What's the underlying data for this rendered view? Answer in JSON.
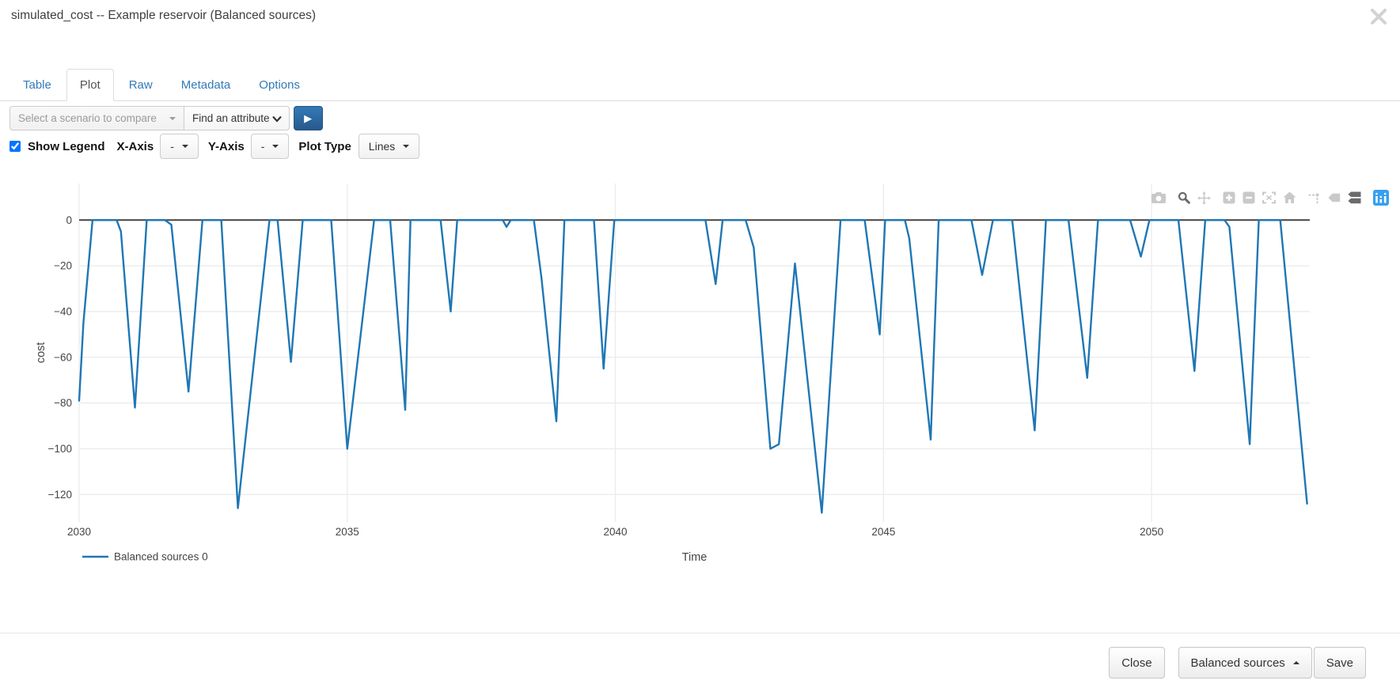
{
  "window": {
    "title": "simulated_cost -- Example reservoir (Balanced sources)"
  },
  "tabs": [
    {
      "label": "Table",
      "active": false
    },
    {
      "label": "Plot",
      "active": true
    },
    {
      "label": "Raw",
      "active": false
    },
    {
      "label": "Metadata",
      "active": false
    },
    {
      "label": "Options",
      "active": false
    }
  ],
  "toolbar": {
    "scenario_select_placeholder": "Select a scenario to compare",
    "attribute_select_label": "Find an attribute",
    "play_icon": "▶"
  },
  "plot_controls": {
    "show_legend_label": "Show Legend",
    "show_legend_checked": true,
    "x_axis_label": "X-Axis",
    "x_axis_value": "-",
    "y_axis_label": "Y-Axis",
    "y_axis_value": "-",
    "plot_type_label": "Plot Type",
    "plot_type_value": "Lines"
  },
  "modebar": {
    "icons": [
      "camera",
      "zoom",
      "pan",
      "zoom-in",
      "zoom-out",
      "autoscale",
      "reset-axes",
      "toggle-spike-lines",
      "hover-closest",
      "hover-compare",
      "plotly-logo"
    ],
    "active_icons": [
      "zoom",
      "hover-compare"
    ]
  },
  "colors": {
    "accent_blue": "#337ab7",
    "series_line": "#1f77b4",
    "plotly_logo_blue": "#36a0f0",
    "zero_line": "#444444",
    "grid_line": "#ececec"
  },
  "chart_data": {
    "type": "line",
    "title": "",
    "xlabel": "Time",
    "ylabel": "cost",
    "xlim": [
      2030,
      2052.95
    ],
    "ylim": [
      -132,
      16
    ],
    "xticks": [
      2030,
      2035,
      2040,
      2045,
      2050
    ],
    "yticks": [
      0,
      -20,
      -40,
      -60,
      -80,
      -100,
      -120
    ],
    "grid": true,
    "zeroline": true,
    "legend_position": "bottom-left",
    "series": [
      {
        "name": "Balanced sources 0",
        "color": "#1f77b4",
        "points": [
          [
            2030.0,
            -79
          ],
          [
            2030.08,
            -45
          ],
          [
            2030.25,
            0
          ],
          [
            2030.7,
            0
          ],
          [
            2030.78,
            -5
          ],
          [
            2031.04,
            -82
          ],
          [
            2031.26,
            0
          ],
          [
            2031.6,
            0
          ],
          [
            2031.72,
            -2
          ],
          [
            2032.04,
            -75
          ],
          [
            2032.3,
            0
          ],
          [
            2032.65,
            0
          ],
          [
            2032.96,
            -126
          ],
          [
            2033.55,
            0
          ],
          [
            2033.7,
            0
          ],
          [
            2033.95,
            -62
          ],
          [
            2034.17,
            0
          ],
          [
            2034.7,
            0
          ],
          [
            2035.0,
            -100
          ],
          [
            2035.5,
            0
          ],
          [
            2035.8,
            0
          ],
          [
            2036.08,
            -83
          ],
          [
            2036.18,
            0
          ],
          [
            2036.74,
            0
          ],
          [
            2036.93,
            -40
          ],
          [
            2037.05,
            0
          ],
          [
            2037.9,
            0
          ],
          [
            2037.97,
            -3
          ],
          [
            2038.05,
            0
          ],
          [
            2038.48,
            0
          ],
          [
            2038.62,
            -25
          ],
          [
            2038.9,
            -88
          ],
          [
            2039.05,
            0
          ],
          [
            2039.6,
            0
          ],
          [
            2039.78,
            -65
          ],
          [
            2039.98,
            0
          ],
          [
            2041.68,
            0
          ],
          [
            2041.87,
            -28
          ],
          [
            2042.0,
            0
          ],
          [
            2042.43,
            0
          ],
          [
            2042.58,
            -12
          ],
          [
            2042.89,
            -100
          ],
          [
            2043.05,
            -98
          ],
          [
            2043.35,
            -19
          ],
          [
            2043.85,
            -128
          ],
          [
            2044.2,
            0
          ],
          [
            2044.65,
            0
          ],
          [
            2044.93,
            -50
          ],
          [
            2045.03,
            0
          ],
          [
            2045.4,
            0
          ],
          [
            2045.48,
            -8
          ],
          [
            2045.88,
            -96
          ],
          [
            2046.03,
            0
          ],
          [
            2046.64,
            0
          ],
          [
            2046.84,
            -24
          ],
          [
            2047.04,
            0
          ],
          [
            2047.4,
            0
          ],
          [
            2047.82,
            -92
          ],
          [
            2048.03,
            0
          ],
          [
            2048.45,
            0
          ],
          [
            2048.8,
            -69
          ],
          [
            2049.0,
            0
          ],
          [
            2049.6,
            0
          ],
          [
            2049.8,
            -16
          ],
          [
            2049.96,
            0
          ],
          [
            2050.5,
            0
          ],
          [
            2050.8,
            -66
          ],
          [
            2051.0,
            0
          ],
          [
            2051.36,
            0
          ],
          [
            2051.45,
            -3
          ],
          [
            2051.83,
            -98
          ],
          [
            2052.0,
            0
          ],
          [
            2052.4,
            0
          ],
          [
            2052.9,
            -124
          ]
        ]
      }
    ]
  },
  "footer": {
    "close_label": "Close",
    "scenario_button_label": "Balanced sources",
    "save_label": "Save"
  }
}
